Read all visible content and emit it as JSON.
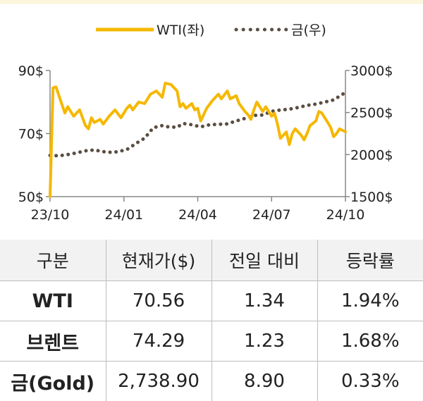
{
  "chart_data": {
    "type": "line",
    "legend": {
      "position": "top-right",
      "items": [
        {
          "label": "WTI(좌)",
          "style": "solid",
          "color": "#f5b800"
        },
        {
          "label": "금(우)",
          "style": "dotted",
          "color": "#5a4e42"
        }
      ]
    },
    "x_ticks": [
      "23/10",
      "24/01",
      "24/04",
      "24/07",
      "24/10"
    ],
    "y_left": {
      "ticks": [
        "90$",
        "70$",
        "50$"
      ],
      "range": [
        50,
        90
      ]
    },
    "y_right": {
      "ticks": [
        "3000$",
        "2500$",
        "2000$",
        "1500$"
      ],
      "range": [
        1500,
        3000
      ]
    },
    "grid": false,
    "series": [
      {
        "name": "WTI(좌)",
        "axis": "left",
        "t": [
          0.0,
          0.01,
          0.02,
          0.03,
          0.05,
          0.06,
          0.08,
          0.1,
          0.12,
          0.13,
          0.14,
          0.15,
          0.17,
          0.18,
          0.2,
          0.22,
          0.24,
          0.26,
          0.27,
          0.28,
          0.3,
          0.32,
          0.34,
          0.36,
          0.38,
          0.39,
          0.41,
          0.43,
          0.44,
          0.45,
          0.46,
          0.48,
          0.49,
          0.5,
          0.51,
          0.53,
          0.55,
          0.57,
          0.58,
          0.6,
          0.61,
          0.63,
          0.64,
          0.66,
          0.67,
          0.68,
          0.69,
          0.7,
          0.72,
          0.73,
          0.75,
          0.76,
          0.77,
          0.78,
          0.8,
          0.81,
          0.82,
          0.83,
          0.85,
          0.86,
          0.87,
          0.88,
          0.9,
          0.91,
          0.92,
          0.94,
          0.95,
          0.96,
          0.97,
          0.98,
          1.0
        ],
        "values": [
          50.0,
          84.5,
          84.8,
          82.0,
          76.5,
          78.5,
          75.5,
          77.5,
          72.5,
          71.5,
          75.0,
          73.5,
          74.5,
          73.0,
          75.5,
          77.5,
          75.0,
          78.0,
          79.0,
          77.5,
          80.0,
          79.5,
          82.5,
          83.5,
          81.5,
          86.0,
          85.5,
          83.5,
          78.5,
          79.5,
          78.0,
          79.5,
          77.5,
          78.0,
          74.0,
          78.0,
          80.5,
          82.5,
          81.0,
          83.5,
          81.0,
          82.0,
          79.5,
          77.0,
          76.0,
          74.5,
          77.5,
          80.0,
          77.0,
          78.5,
          75.5,
          76.5,
          73.0,
          68.5,
          70.5,
          66.5,
          70.0,
          71.5,
          69.5,
          68.0,
          70.0,
          72.5,
          74.0,
          77.0,
          76.5,
          73.5,
          72.0,
          69.0,
          70.0,
          71.5,
          70.56
        ]
      },
      {
        "name": "금(우)",
        "axis": "right",
        "t": [
          0.0,
          0.03,
          0.06,
          0.09,
          0.12,
          0.15,
          0.18,
          0.21,
          0.23,
          0.26,
          0.29,
          0.32,
          0.35,
          0.38,
          0.4,
          0.43,
          0.45,
          0.48,
          0.51,
          0.54,
          0.57,
          0.6,
          0.63,
          0.66,
          0.69,
          0.72,
          0.75,
          0.78,
          0.81,
          0.84,
          0.87,
          0.9,
          0.93,
          0.96,
          1.0
        ],
        "values": [
          1990,
          1985,
          2000,
          2020,
          2045,
          2055,
          2035,
          2025,
          2035,
          2060,
          2130,
          2195,
          2320,
          2345,
          2330,
          2325,
          2370,
          2355,
          2330,
          2355,
          2360,
          2365,
          2400,
          2430,
          2465,
          2470,
          2515,
          2530,
          2540,
          2560,
          2585,
          2600,
          2625,
          2650,
          2738.9
        ]
      }
    ]
  },
  "table": {
    "headers": [
      "구분",
      "현재가($)",
      "전일 대비",
      "등락률"
    ],
    "rows": [
      [
        "WTI",
        "70.56",
        "1.34",
        "1.94%"
      ],
      [
        "브렌트",
        "74.29",
        "1.23",
        "1.68%"
      ],
      [
        "금(Gold)",
        "2,738.90",
        "8.90",
        "0.33%"
      ]
    ]
  }
}
